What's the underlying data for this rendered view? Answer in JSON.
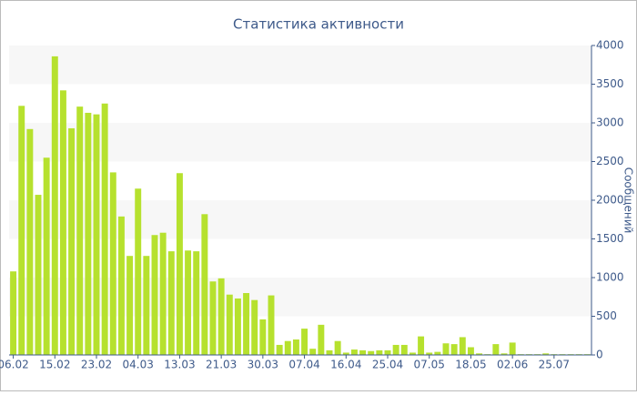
{
  "chart_data": {
    "type": "bar",
    "title": "Статистика активности",
    "y_axis_label": "Сообщений",
    "categories": [
      "06.02",
      null,
      null,
      null,
      null,
      "15.02",
      null,
      null,
      null,
      null,
      "23.02",
      null,
      null,
      null,
      null,
      "04.03",
      null,
      null,
      null,
      null,
      "13.03",
      null,
      null,
      null,
      null,
      "21.03",
      null,
      null,
      null,
      null,
      "30.03",
      null,
      null,
      null,
      null,
      "07.04",
      null,
      null,
      null,
      null,
      "16.04",
      null,
      null,
      null,
      null,
      "25.04",
      null,
      null,
      null,
      null,
      "07.05",
      null,
      null,
      null,
      null,
      "18.05",
      null,
      null,
      null,
      null,
      "02.06",
      null,
      null,
      null,
      null,
      "25.07",
      null,
      null,
      null,
      null
    ],
    "values": [
      1080,
      3220,
      2920,
      2070,
      2550,
      3860,
      3420,
      2930,
      3210,
      3130,
      3110,
      3250,
      2360,
      1790,
      1280,
      2150,
      1280,
      1550,
      1580,
      1340,
      2350,
      1350,
      1340,
      1820,
      950,
      990,
      780,
      730,
      800,
      710,
      460,
      770,
      130,
      180,
      200,
      340,
      80,
      390,
      60,
      180,
      30,
      70,
      60,
      50,
      60,
      60,
      130,
      130,
      30,
      240,
      30,
      40,
      150,
      140,
      230,
      100,
      20,
      10,
      140,
      20,
      160,
      10,
      10,
      10,
      20,
      10,
      10,
      10,
      10,
      10
    ],
    "color": "#b6e12e",
    "ylim": [
      0,
      4000
    ],
    "yticks": [
      0,
      500,
      1000,
      1500,
      2000,
      2500,
      3000,
      3500,
      4000
    ],
    "grid": true
  }
}
